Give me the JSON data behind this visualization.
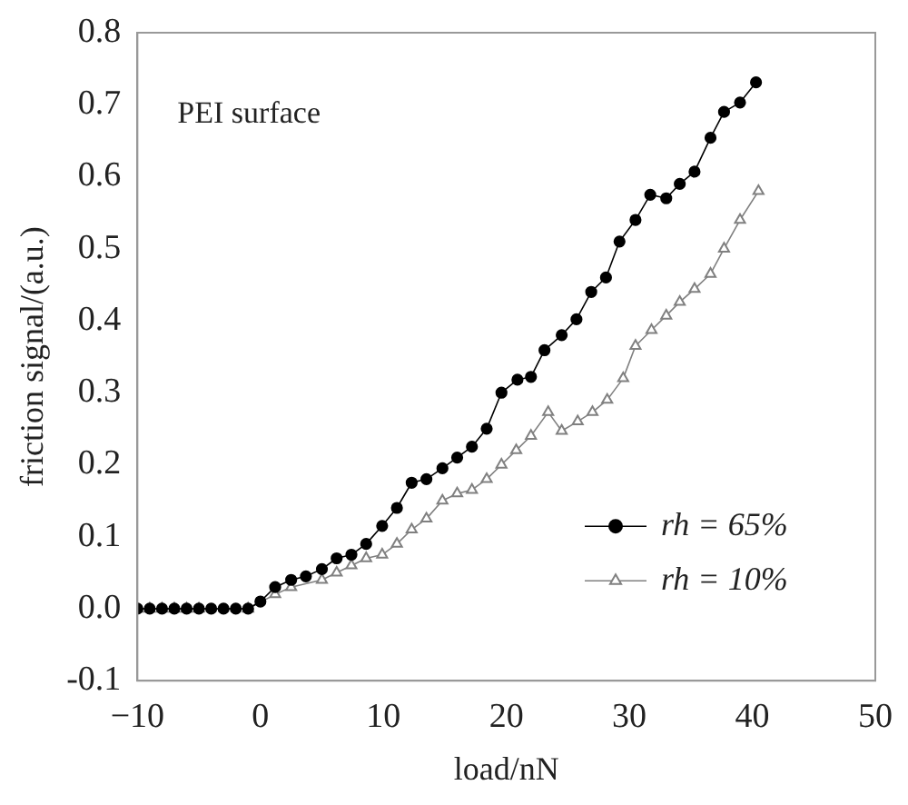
{
  "chart_data": {
    "type": "line",
    "xlabel": "load/nN",
    "ylabel": "friction signal/(a.u.)",
    "annotations": [
      "PEI surface"
    ],
    "xlim": [
      -10,
      50
    ],
    "xticks": [
      {
        "value": -10,
        "label": "−10"
      },
      0,
      10,
      20,
      30,
      40,
      50
    ],
    "ylim": [
      -0.1,
      0.8
    ],
    "yticks": [
      {
        "value": -0.1,
        "label": "-0.1"
      },
      {
        "value": 0,
        "label": "0.0"
      },
      0.1,
      0.2,
      0.3,
      0.4,
      0.5,
      0.6,
      0.7,
      0.8
    ],
    "grid": false,
    "legend": "bottom right",
    "series": [
      {
        "name": "rh = 65%",
        "color": "#000000",
        "marker": "circle",
        "x": [
          -10,
          -9,
          -8,
          -7,
          -6,
          -5,
          -4,
          -3,
          -2,
          -1,
          0,
          1.2,
          2.5,
          3.7,
          5,
          6.2,
          7.4,
          8.6,
          9.9,
          11.1,
          12.3,
          13.5,
          14.8,
          16,
          17.2,
          18.4,
          19.6,
          20.9,
          22,
          23.1,
          24.5,
          25.7,
          26.9,
          28.1,
          29.2,
          30.5,
          31.7,
          33,
          34.1,
          35.3,
          36.6,
          37.7,
          39,
          40.3
        ],
        "values": [
          0,
          0,
          0,
          0,
          0,
          0,
          0,
          0,
          0,
          0,
          0.01,
          0.03,
          0.04,
          0.045,
          0.055,
          0.07,
          0.075,
          0.09,
          0.115,
          0.14,
          0.175,
          0.18,
          0.195,
          0.21,
          0.225,
          0.25,
          0.3,
          0.318,
          0.322,
          0.359,
          0.38,
          0.402,
          0.44,
          0.46,
          0.51,
          0.54,
          0.575,
          0.57,
          0.59,
          0.607,
          0.654,
          0.69,
          0.703,
          0.731
        ]
      },
      {
        "name": "rh = 10%",
        "color": "#808080",
        "marker": "triangle",
        "x": [
          -10,
          -9,
          -8,
          -7,
          -6,
          -5,
          -4,
          -3,
          -2,
          -1,
          0,
          1.2,
          2.5,
          3.7,
          5,
          6.2,
          7.4,
          8.6,
          9.9,
          11.1,
          12.3,
          13.5,
          14.8,
          16,
          17.2,
          18.4,
          19.6,
          20.8,
          22,
          23.4,
          24.5,
          25.8,
          27,
          28.2,
          29.5,
          30.5,
          31.8,
          33,
          34.1,
          35.3,
          36.6,
          37.7,
          39,
          40.5
        ],
        "values": [
          0,
          0,
          0,
          0,
          0,
          0,
          null,
          null,
          null,
          0,
          null,
          0.02,
          0.03,
          null,
          0.04,
          0.05,
          0.06,
          0.07,
          0.075,
          0.09,
          0.11,
          0.125,
          0.15,
          0.16,
          0.165,
          0.18,
          0.2,
          0.22,
          0.24,
          0.273,
          0.247,
          0.26,
          0.273,
          0.29,
          0.32,
          0.365,
          0.387,
          0.407,
          0.426,
          0.444,
          0.465,
          0.5,
          0.54,
          0.58
        ]
      }
    ]
  }
}
